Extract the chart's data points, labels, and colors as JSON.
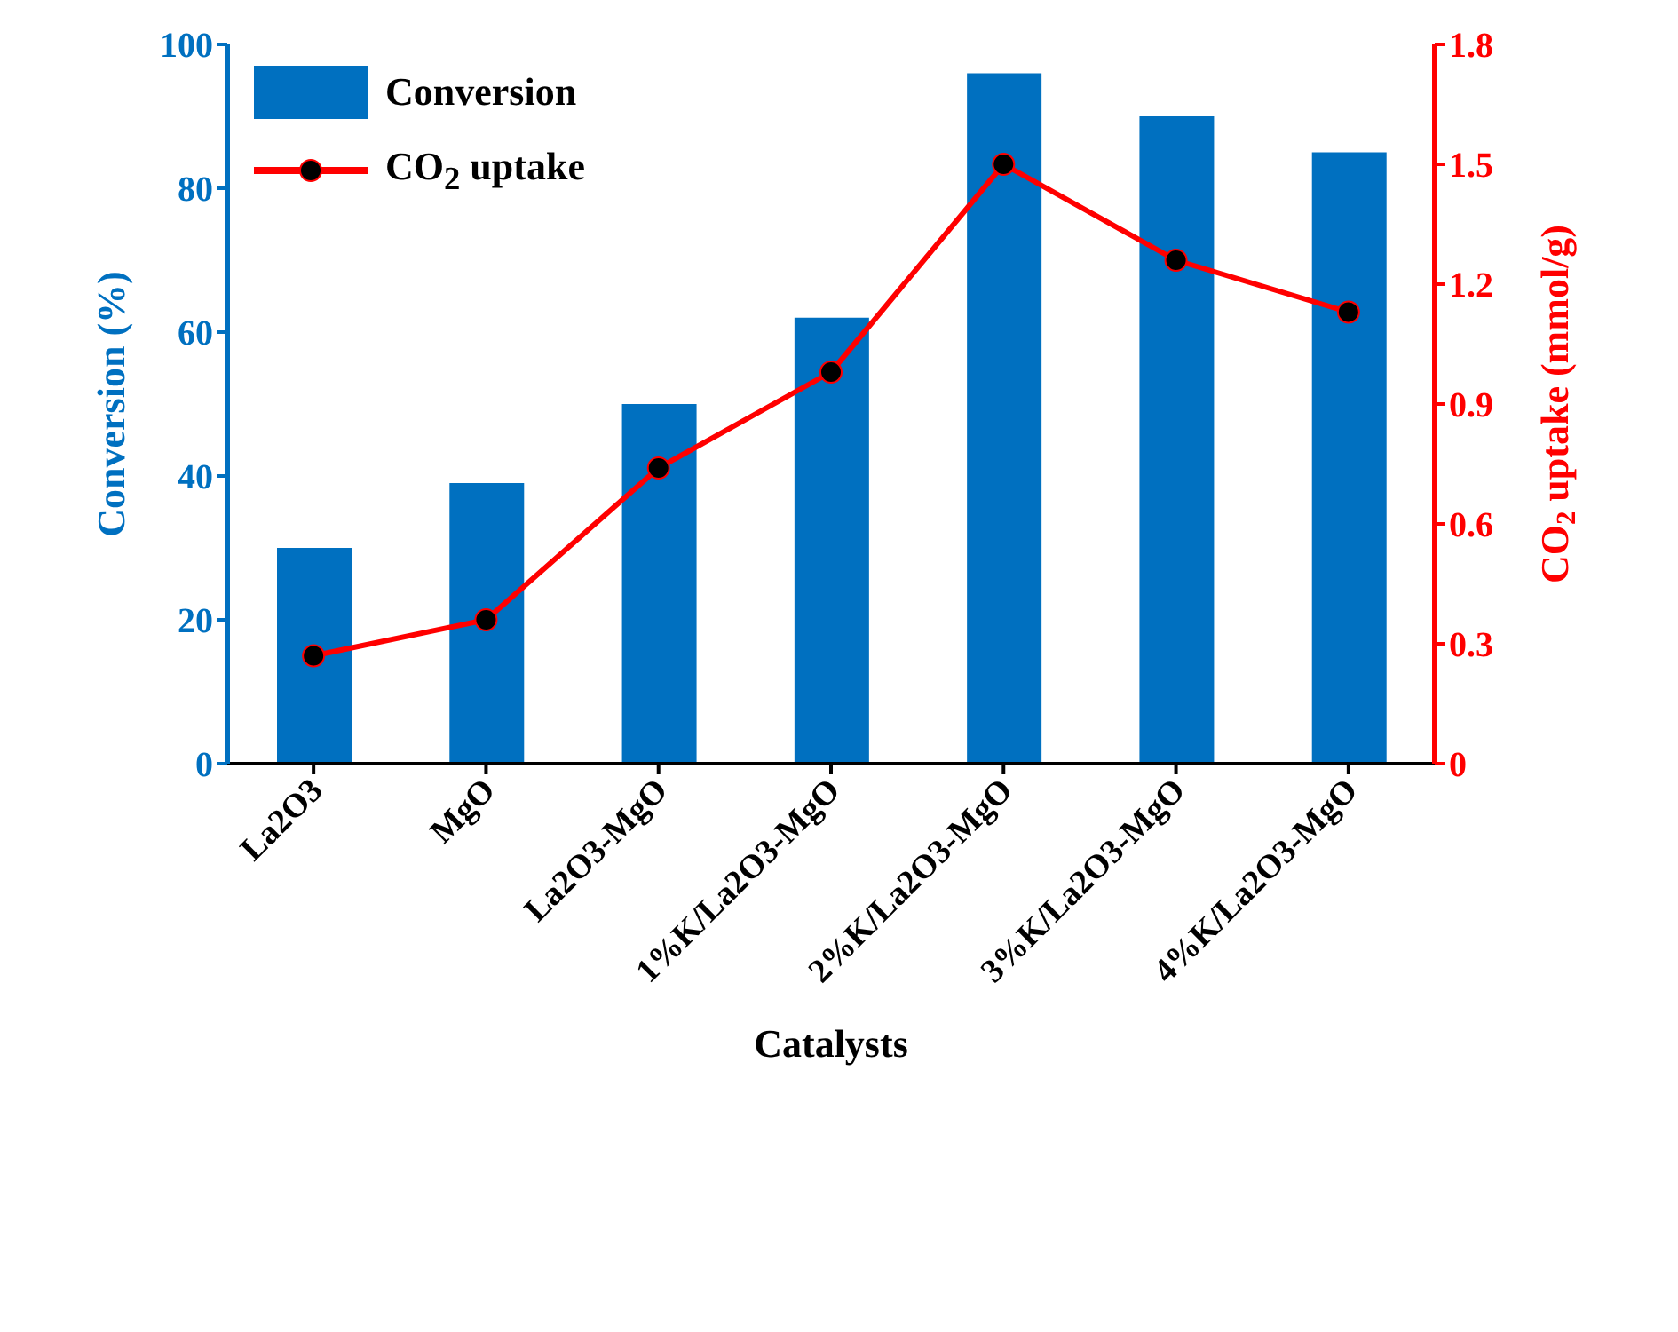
{
  "chart_data": {
    "type": "bar",
    "categories": [
      "La2O3",
      "MgO",
      "La2O3-MgO",
      "1%K/La2O3-MgO",
      "2%K/La2O3-MgO",
      "3%K/La2O3-MgO",
      "4%K/La2O3-MgO"
    ],
    "series": [
      {
        "name": "Conversion",
        "color": "#0070c0",
        "values": [
          30,
          39,
          50,
          62,
          96,
          90,
          85
        ]
      },
      {
        "name": "CO$_{2}$ uptake",
        "type": "line",
        "axis": "y2",
        "color": "#ff0000",
        "values": [
          0.27,
          0.36,
          0.74,
          0.98,
          1.5,
          1.26,
          1.13
        ]
      }
    ],
    "xlabel": "Catalysts",
    "ylabel": "Conversion (%)",
    "y2label": "CO$_{2}$ uptake (mmol/g)",
    "ylim": [
      0,
      100
    ],
    "yticks": [
      0,
      20,
      40,
      60,
      80,
      100
    ],
    "y2lim": [
      0,
      1.8
    ],
    "y2ticks": [
      0,
      0.3,
      0.6,
      0.9,
      1.2,
      1.5,
      1.8
    ],
    "legend": "top left",
    "grid": false,
    "marker": "circle"
  }
}
